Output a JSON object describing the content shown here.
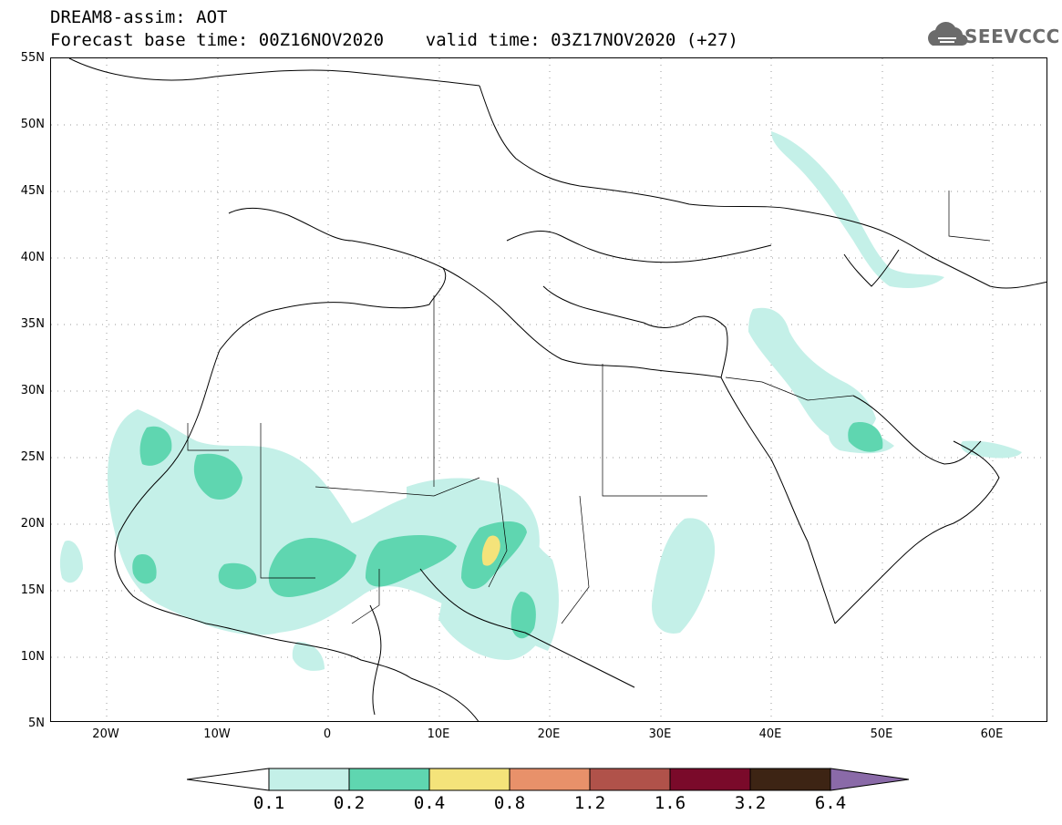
{
  "title": {
    "line1": "DREAM8-assim: AOT",
    "line2": "Forecast base time: 00Z16NOV2020    valid time: 03Z17NOV2020 (+27)"
  },
  "logo": {
    "text": "SEEVCCC",
    "icon": "cloud-icon"
  },
  "map": {
    "lat_labels": [
      "55N",
      "50N",
      "45N",
      "40N",
      "35N",
      "30N",
      "25N",
      "20N",
      "15N",
      "10N",
      "5N"
    ],
    "lon_labels": [
      "20W",
      "10W",
      "0",
      "10E",
      "20E",
      "30E",
      "40E",
      "50E",
      "60E"
    ],
    "extent": {
      "lon_min": -25,
      "lon_max": 65,
      "lat_min": 5,
      "lat_max": 55
    }
  },
  "colorbar": {
    "levels": [
      "0.1",
      "0.2",
      "0.4",
      "0.8",
      "1.2",
      "1.6",
      "3.2",
      "6.4"
    ],
    "colors": [
      "#ffffff",
      "#c4f0e8",
      "#5fd6b0",
      "#f4e37a",
      "#e8916a",
      "#b0524a",
      "#7a0a2a",
      "#3d2414",
      "#8a6aa8"
    ]
  }
}
